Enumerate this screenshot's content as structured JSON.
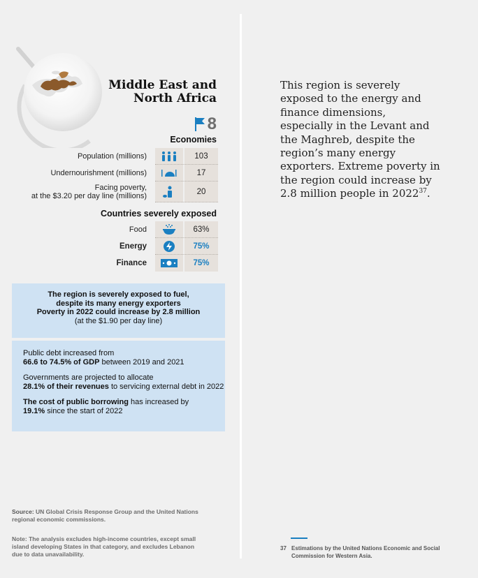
{
  "region": {
    "title_line1": "Middle East and",
    "title_line2": "North Africa",
    "economies_count": "8",
    "economies_label": "Economies"
  },
  "stats": [
    {
      "label": "Population (millions)",
      "icon": "people-icon",
      "value": "103"
    },
    {
      "label": "Undernourishment (millions)",
      "icon": "hunger-icon",
      "value": "17"
    },
    {
      "label_line1": "Facing poverty,",
      "label_line2": "at the $3.20 per day line (millions)",
      "icon": "poverty-icon",
      "value": "20"
    }
  ],
  "exposed": {
    "heading": "Countries severely exposed",
    "rows": [
      {
        "label": "Food",
        "icon": "food-bowl-icon",
        "value": "63%"
      },
      {
        "label": "Energy",
        "icon": "energy-bolt-icon",
        "value": "75%"
      },
      {
        "label": "Finance",
        "icon": "banknote-icon",
        "value": "75%"
      }
    ]
  },
  "box1": {
    "line1": "The region is severely exposed to fuel,",
    "line2": "despite its many energy exporters",
    "line3": "Poverty in 2022 could increase by 2.8 million",
    "line4": "(at the $1.90 per day line)"
  },
  "box2": {
    "p1_a": "Public debt increased from",
    "p1_b": "66.6 to 74.5% of GDP",
    "p1_c": " between 2019 and 2021",
    "p2_a": "Governments are projected to allocate",
    "p2_b": "28.1% of their revenues",
    "p2_c": " to servicing external debt in 2022",
    "p3_a": "The cost of public borrowing",
    "p3_b": " has increased by",
    "p3_c": "19.1%",
    "p3_d": " since the start of 2022"
  },
  "source": {
    "label": "Source:",
    "text": " UN Global Crisis Response Group and the United Nations regional economic commissions."
  },
  "note": {
    "label": "Note:",
    "text": " The analysis excludes high-income countries, except small island developing States in that category, and excludes Lebanon due to data unavailability."
  },
  "body": {
    "text": "This region is severely exposed to the energy and finance dimensions, especially in the Levant and the Maghreb, despite the region’s many energy exporters. Extreme poverty in the region could increase by 2.8 million people in 2022",
    "ref": "37",
    "end": "."
  },
  "footnote": {
    "number": "37",
    "text": "Estimations by the United Nations Economic and Social Commission for Western Asia."
  },
  "colors": {
    "accent_blue": "#1a7fc1",
    "box_blue": "#cfe2f3",
    "table_bg": "#e6e1dc",
    "page_bg": "#f0f0f0"
  }
}
